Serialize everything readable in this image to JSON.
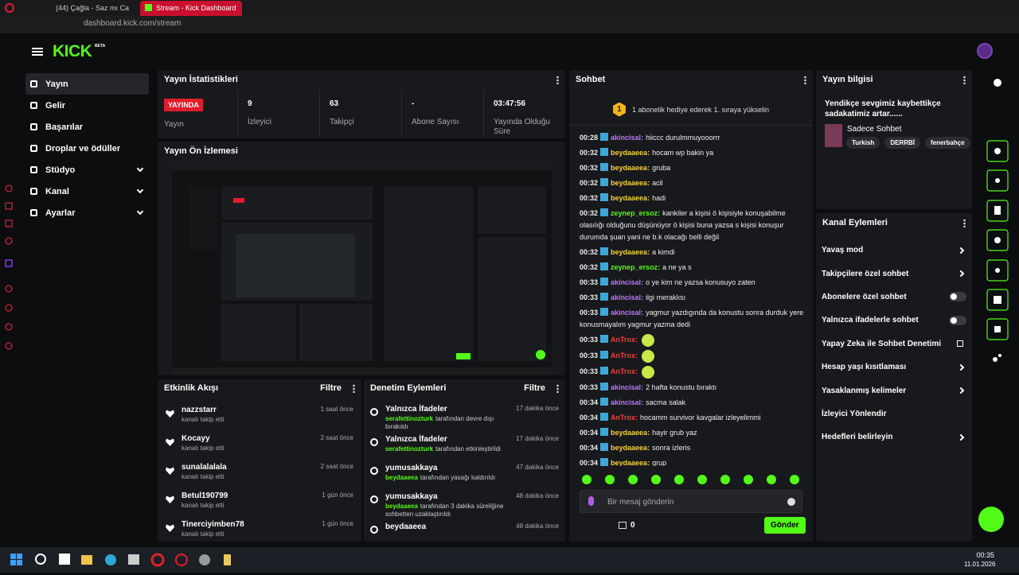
{
  "browser": {
    "tabs": [
      "(44) Çağla - Saz mı Ca",
      "Stream - Kick Dashboard"
    ],
    "url": "dashboard.kick.com/stream"
  },
  "header": {
    "logo": "KICK",
    "logo_badge": "BETA"
  },
  "nav": [
    "Yayın",
    "Gelir",
    "Başarılar",
    "Droplar ve ödüller",
    "Stüdyo",
    "Kanal",
    "Ayarlar"
  ],
  "stats": {
    "title": "Yayın İstatistikleri",
    "badge": "YAYINDA",
    "label": "Yayın",
    "items": [
      {
        "value": 9,
        "label": "İzleyici"
      },
      {
        "value": 63,
        "label": "Takipçi"
      },
      {
        "value": "-",
        "label": "Abone Sayısı"
      },
      {
        "value": "03:47:56",
        "label": "Yayında Olduğu Süre"
      }
    ]
  },
  "preview": {
    "title": "Yayın Ön İzlemesi"
  },
  "activity": {
    "title": "Etkinlik Akışı",
    "filter": "Filtre",
    "items": [
      {
        "name": "nazzstarr",
        "desc": "kanalı takip etti",
        "time": "1 saat önce"
      },
      {
        "name": "Kocayy",
        "desc": "kanalı takip etti",
        "time": "2 saat önce"
      },
      {
        "name": "sunalalalala",
        "desc": "kanalı takip etti",
        "time": "2 saat önce"
      },
      {
        "name": "Betul190799",
        "desc": "kanalı takip etti",
        "time": "1 gün önce"
      },
      {
        "name": "Tinerciyimben78",
        "desc": "kanalı takip etti",
        "time": "1 gün önce"
      }
    ]
  },
  "moderation": {
    "title": "Denetim Eylemleri",
    "filter": "Filtre",
    "items": [
      {
        "title": "Yalnızca İfadeler",
        "user": "serafettinozturk",
        "desc": "tarafından devre dışı bırakıldı",
        "time": "17 dakika önce"
      },
      {
        "title": "Yalnızca İfadeler",
        "user": "serafettinozturk",
        "desc": "tarafından etkinleştirildi",
        "time": "17 dakika önce"
      },
      {
        "title": "yumusakkaya",
        "user": "beydaaeea",
        "desc": "tarafından yasağı kaldırıldı",
        "time": "47 dakika önce"
      },
      {
        "title": "yumusakkaya",
        "user": "beydaaeea",
        "desc": "tarafından 3 dakika süreliğine sohbetten uzaklaştırıldı",
        "time": "48 dakika önce"
      },
      {
        "title": "beydaaeea",
        "time": "48 dakika önce"
      }
    ]
  },
  "chat": {
    "title": "Sohbet",
    "banner_badge": "1",
    "banner": "1 abonelik hediye ederek 1. sıraya yükselin",
    "messages": [
      {
        "time": "00:28",
        "user": "akincisal",
        "color": "#b57cf5",
        "text": "hiiccc durulmmuyooorrr"
      },
      {
        "time": "00:32",
        "user": "beydaaeea",
        "color": "#f5d33a",
        "text": "hocam wp bakin ya"
      },
      {
        "time": "00:32",
        "user": "beydaaeea",
        "color": "#f5d33a",
        "text": "gruba"
      },
      {
        "time": "00:32",
        "user": "beydaaeea",
        "color": "#f5d33a",
        "text": "acil"
      },
      {
        "time": "00:32",
        "user": "beydaaeea",
        "color": "#f5d33a",
        "text": "hadi"
      },
      {
        "time": "00:32",
        "user": "zeynep_ersoz",
        "color": "#53fc18",
        "text": "kankiler a kişisi ö kişisiyle konuşabilme olasılığı olduğunu düşünüyor ö kişisi buna yazsa s kişisi konuşur durumda şuan yani ne b.k olacağı belli değil"
      },
      {
        "time": "00:32",
        "user": "beydaaeea",
        "color": "#f5d33a",
        "text": "a kimdi"
      },
      {
        "time": "00:32",
        "user": "zeynep_ersoz",
        "color": "#53fc18",
        "text": "a ne ya s"
      },
      {
        "time": "00:33",
        "user": "akincisal",
        "color": "#b57cf5",
        "text": "o ye kim ne yazsa konusuyo zaten"
      },
      {
        "time": "00:33",
        "user": "akincisal",
        "color": "#b57cf5",
        "text": "ilgi meraklısı"
      },
      {
        "time": "00:33",
        "user": "akincisal",
        "color": "#b57cf5",
        "text": "yagmur yazdıgında da konustu sonra durduk yere konusmayalım yagmur yazma dedi"
      },
      {
        "time": "00:33",
        "user": "AnTrox",
        "color": "#f0413b"
      },
      {
        "time": "00:33",
        "user": "AnTrox",
        "color": "#f0413b"
      },
      {
        "time": "00:33",
        "user": "AnTrox",
        "color": "#f0413b"
      },
      {
        "time": "00:33",
        "user": "akincisal",
        "color": "#b57cf5",
        "text": "2 hafta konustu bıraktı"
      },
      {
        "time": "00:34",
        "user": "akincisal",
        "color": "#b57cf5",
        "text": "sacma salak"
      },
      {
        "time": "00:34",
        "user": "AnTrox",
        "color": "#f0413b",
        "text": "hocamm survivor kavgalar izleyelimmi"
      },
      {
        "time": "00:34",
        "user": "beydaaeea",
        "color": "#f5d33a",
        "text": "hayir grub yaz"
      },
      {
        "time": "00:34",
        "user": "beydaaeea",
        "color": "#f5d33a",
        "text": "sonra izleris"
      },
      {
        "time": "00:34",
        "user": "beydaaeea",
        "color": "#f5d33a",
        "text": "grup"
      }
    ],
    "placeholder": "Bir mesaj gönderin",
    "count": 0,
    "send": "Gönder"
  },
  "info": {
    "title": "Yayın bilgisi",
    "stream_title": "Yendikçe sevgimiz kaybettikçe sadakatimiz artar......",
    "category": "Sadece Sohbet",
    "tags": [
      "Turkish",
      "DERRBİ",
      "fenerbahçe"
    ]
  },
  "actions": {
    "title": "Kanal Eylemleri",
    "items": [
      {
        "label": "Yavaş mod",
        "control": "arrow"
      },
      {
        "label": "Takipçilere özel sohbet",
        "control": "arrow"
      },
      {
        "label": "Abonelere özel sohbet",
        "control": "toggle"
      },
      {
        "label": "Yalnızca ifadelerle sohbet",
        "control": "toggle"
      },
      {
        "label": "Yapay Zeka ile Sohbet Denetimi",
        "control": "link"
      },
      {
        "label": "Hesap yaşı kısıtlaması",
        "control": "arrow"
      },
      {
        "label": "Yasaklanmış kelimeler",
        "control": "arrow"
      },
      {
        "label": "İzleyici Yönlendir"
      },
      {
        "label": "Hedefleri belirleyin",
        "control": "arrow"
      }
    ]
  },
  "taskbar": {
    "time": "00:35",
    "date": "11.01.2026"
  }
}
